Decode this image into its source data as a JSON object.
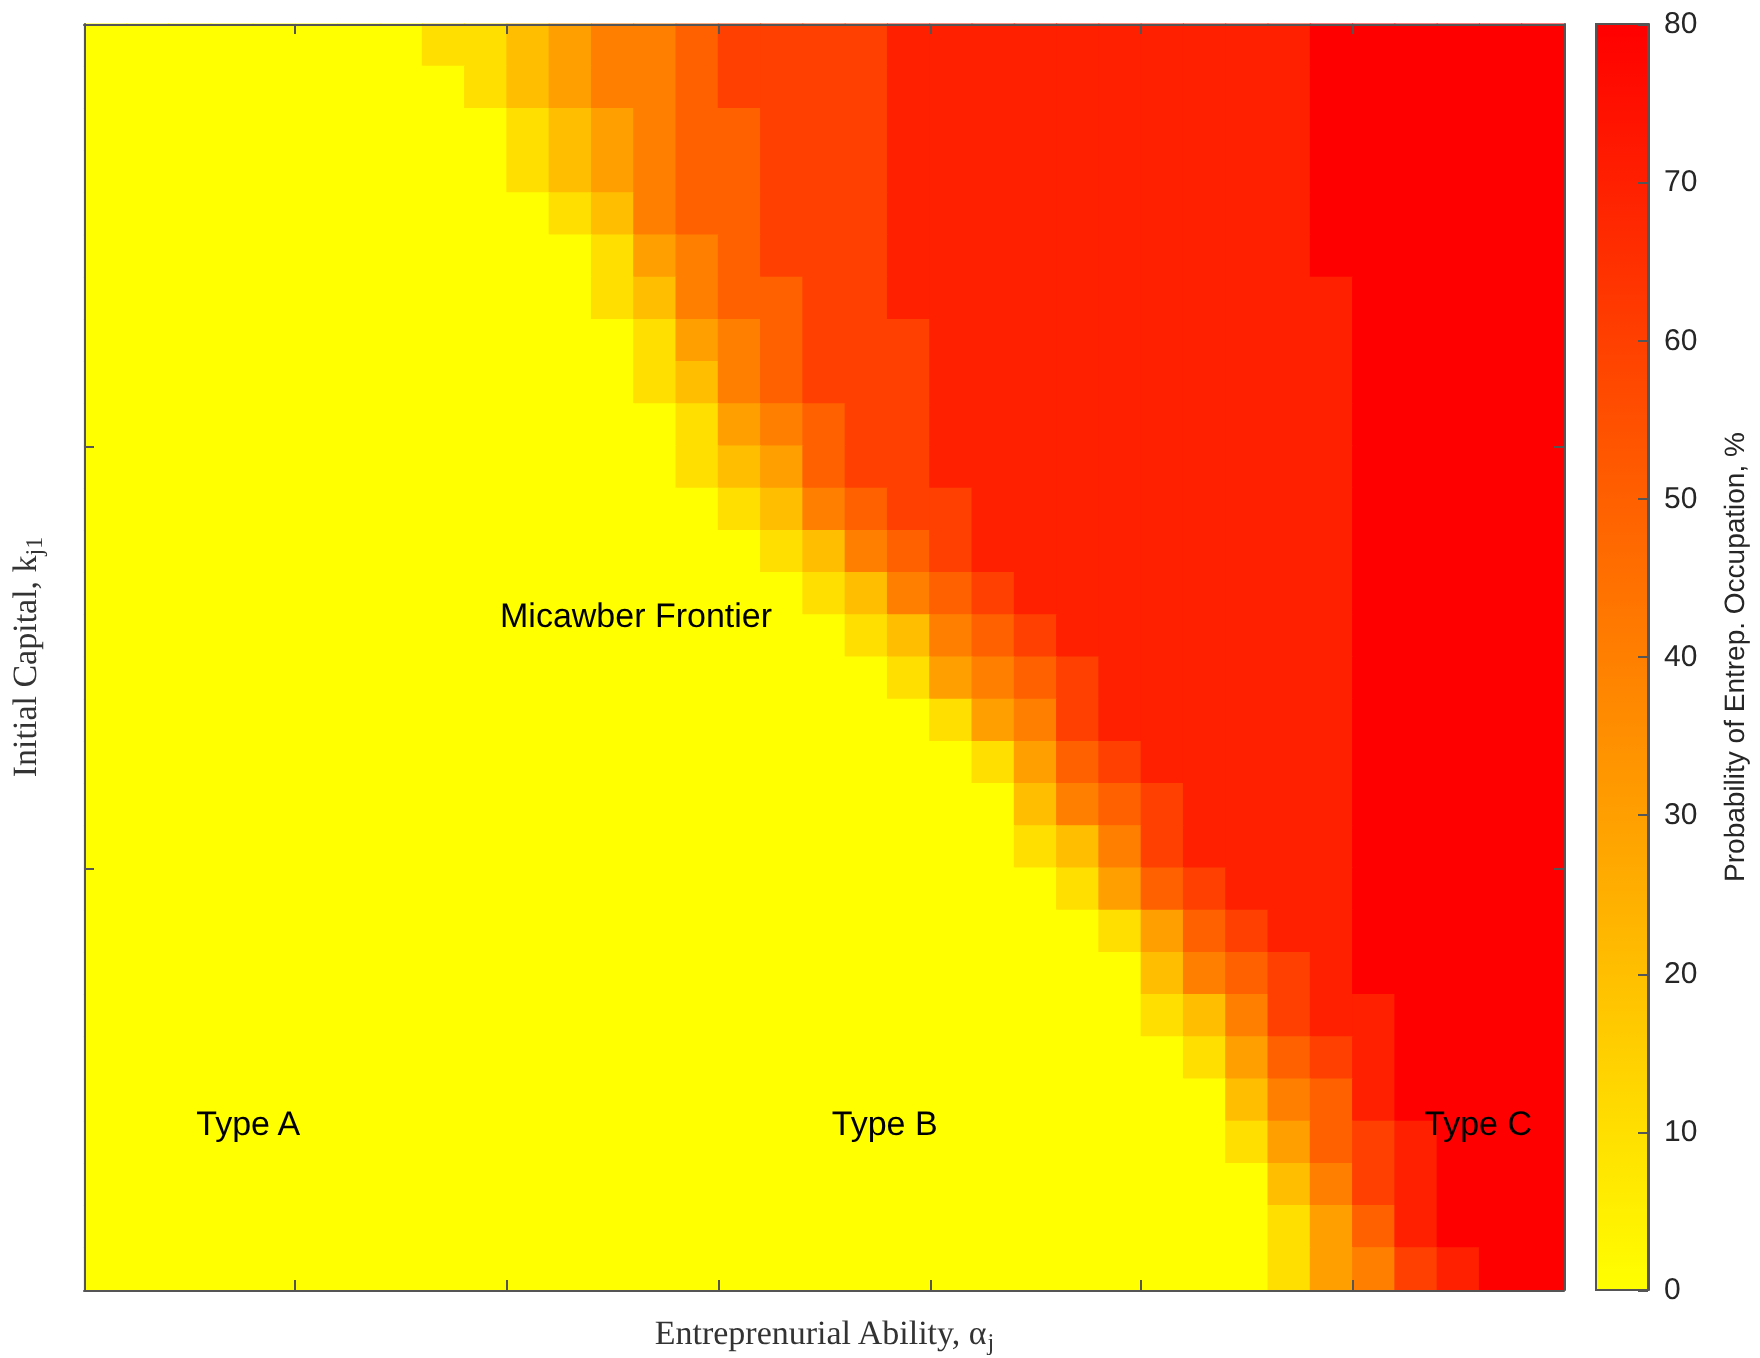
{
  "chart_data": {
    "type": "heatmap",
    "categories": [
      null,
      null,
      null,
      null,
      null,
      null,
      null,
      null,
      null,
      null,
      null,
      null,
      null,
      null,
      null,
      null,
      null,
      null,
      null,
      null,
      null,
      null,
      null,
      null,
      null,
      null,
      null,
      null,
      null,
      null,
      null,
      null,
      null,
      null,
      null
    ],
    "y_categories": [
      null,
      null,
      null,
      null,
      null,
      null,
      null,
      null,
      null,
      null,
      null,
      null,
      null,
      null,
      null,
      null,
      null,
      null,
      null,
      null,
      null,
      null,
      null,
      null,
      null,
      null,
      null,
      null,
      null,
      null
    ],
    "cells": [
      [
        0,
        0,
        0,
        0,
        0,
        0,
        0,
        0,
        10,
        10,
        20,
        30,
        40,
        40,
        50,
        60,
        60,
        60,
        60,
        70,
        70,
        70,
        70,
        70,
        70,
        70,
        70,
        70,
        70,
        80,
        80,
        80,
        80,
        80,
        80
      ],
      [
        0,
        0,
        0,
        0,
        0,
        0,
        0,
        0,
        0,
        10,
        20,
        30,
        40,
        40,
        50,
        60,
        60,
        60,
        60,
        70,
        70,
        70,
        70,
        70,
        70,
        70,
        70,
        70,
        70,
        80,
        80,
        80,
        80,
        80,
        80
      ],
      [
        0,
        0,
        0,
        0,
        0,
        0,
        0,
        0,
        0,
        0,
        10,
        20,
        30,
        40,
        50,
        50,
        60,
        60,
        60,
        70,
        70,
        70,
        70,
        70,
        70,
        70,
        70,
        70,
        70,
        80,
        80,
        80,
        80,
        80,
        80
      ],
      [
        0,
        0,
        0,
        0,
        0,
        0,
        0,
        0,
        0,
        0,
        10,
        20,
        30,
        40,
        50,
        50,
        60,
        60,
        60,
        70,
        70,
        70,
        70,
        70,
        70,
        70,
        70,
        70,
        70,
        80,
        80,
        80,
        80,
        80,
        80
      ],
      [
        0,
        0,
        0,
        0,
        0,
        0,
        0,
        0,
        0,
        0,
        0,
        10,
        20,
        40,
        50,
        50,
        60,
        60,
        60,
        70,
        70,
        70,
        70,
        70,
        70,
        70,
        70,
        70,
        70,
        80,
        80,
        80,
        80,
        80,
        80
      ],
      [
        0,
        0,
        0,
        0,
        0,
        0,
        0,
        0,
        0,
        0,
        0,
        0,
        10,
        30,
        40,
        50,
        60,
        60,
        60,
        70,
        70,
        70,
        70,
        70,
        70,
        70,
        70,
        70,
        70,
        80,
        80,
        80,
        80,
        80,
        80
      ],
      [
        0,
        0,
        0,
        0,
        0,
        0,
        0,
        0,
        0,
        0,
        0,
        0,
        10,
        20,
        40,
        50,
        50,
        60,
        60,
        70,
        70,
        70,
        70,
        70,
        70,
        70,
        70,
        70,
        70,
        70,
        80,
        80,
        80,
        80,
        80
      ],
      [
        0,
        0,
        0,
        0,
        0,
        0,
        0,
        0,
        0,
        0,
        0,
        0,
        0,
        10,
        30,
        40,
        50,
        60,
        60,
        60,
        70,
        70,
        70,
        70,
        70,
        70,
        70,
        70,
        70,
        70,
        80,
        80,
        80,
        80,
        80
      ],
      [
        0,
        0,
        0,
        0,
        0,
        0,
        0,
        0,
        0,
        0,
        0,
        0,
        0,
        10,
        20,
        40,
        50,
        60,
        60,
        60,
        70,
        70,
        70,
        70,
        70,
        70,
        70,
        70,
        70,
        70,
        80,
        80,
        80,
        80,
        80
      ],
      [
        0,
        0,
        0,
        0,
        0,
        0,
        0,
        0,
        0,
        0,
        0,
        0,
        0,
        0,
        10,
        30,
        40,
        50,
        60,
        60,
        70,
        70,
        70,
        70,
        70,
        70,
        70,
        70,
        70,
        70,
        80,
        80,
        80,
        80,
        80
      ],
      [
        0,
        0,
        0,
        0,
        0,
        0,
        0,
        0,
        0,
        0,
        0,
        0,
        0,
        0,
        10,
        20,
        30,
        50,
        60,
        60,
        70,
        70,
        70,
        70,
        70,
        70,
        70,
        70,
        70,
        70,
        80,
        80,
        80,
        80,
        80
      ],
      [
        0,
        0,
        0,
        0,
        0,
        0,
        0,
        0,
        0,
        0,
        0,
        0,
        0,
        0,
        0,
        10,
        20,
        40,
        50,
        60,
        60,
        70,
        70,
        70,
        70,
        70,
        70,
        70,
        70,
        70,
        80,
        80,
        80,
        80,
        80
      ],
      [
        0,
        0,
        0,
        0,
        0,
        0,
        0,
        0,
        0,
        0,
        0,
        0,
        0,
        0,
        0,
        0,
        10,
        20,
        40,
        50,
        60,
        70,
        70,
        70,
        70,
        70,
        70,
        70,
        70,
        70,
        80,
        80,
        80,
        80,
        80
      ],
      [
        0,
        0,
        0,
        0,
        0,
        0,
        0,
        0,
        0,
        0,
        0,
        0,
        0,
        0,
        0,
        0,
        0,
        10,
        20,
        40,
        50,
        60,
        70,
        70,
        70,
        70,
        70,
        70,
        70,
        70,
        80,
        80,
        80,
        80,
        80
      ],
      [
        0,
        0,
        0,
        0,
        0,
        0,
        0,
        0,
        0,
        0,
        0,
        0,
        0,
        0,
        0,
        0,
        0,
        0,
        10,
        20,
        40,
        50,
        60,
        70,
        70,
        70,
        70,
        70,
        70,
        70,
        80,
        80,
        80,
        80,
        80
      ],
      [
        0,
        0,
        0,
        0,
        0,
        0,
        0,
        0,
        0,
        0,
        0,
        0,
        0,
        0,
        0,
        0,
        0,
        0,
        0,
        10,
        30,
        40,
        50,
        60,
        70,
        70,
        70,
        70,
        70,
        70,
        80,
        80,
        80,
        80,
        80
      ],
      [
        0,
        0,
        0,
        0,
        0,
        0,
        0,
        0,
        0,
        0,
        0,
        0,
        0,
        0,
        0,
        0,
        0,
        0,
        0,
        0,
        10,
        30,
        40,
        60,
        70,
        70,
        70,
        70,
        70,
        70,
        80,
        80,
        80,
        80,
        80
      ],
      [
        0,
        0,
        0,
        0,
        0,
        0,
        0,
        0,
        0,
        0,
        0,
        0,
        0,
        0,
        0,
        0,
        0,
        0,
        0,
        0,
        0,
        10,
        30,
        50,
        60,
        70,
        70,
        70,
        70,
        70,
        80,
        80,
        80,
        80,
        80
      ],
      [
        0,
        0,
        0,
        0,
        0,
        0,
        0,
        0,
        0,
        0,
        0,
        0,
        0,
        0,
        0,
        0,
        0,
        0,
        0,
        0,
        0,
        0,
        20,
        40,
        50,
        60,
        70,
        70,
        70,
        70,
        80,
        80,
        80,
        80,
        80
      ],
      [
        0,
        0,
        0,
        0,
        0,
        0,
        0,
        0,
        0,
        0,
        0,
        0,
        0,
        0,
        0,
        0,
        0,
        0,
        0,
        0,
        0,
        0,
        10,
        20,
        40,
        60,
        70,
        70,
        70,
        70,
        80,
        80,
        80,
        80,
        80
      ],
      [
        0,
        0,
        0,
        0,
        0,
        0,
        0,
        0,
        0,
        0,
        0,
        0,
        0,
        0,
        0,
        0,
        0,
        0,
        0,
        0,
        0,
        0,
        0,
        10,
        30,
        50,
        60,
        70,
        70,
        70,
        80,
        80,
        80,
        80,
        80
      ],
      [
        0,
        0,
        0,
        0,
        0,
        0,
        0,
        0,
        0,
        0,
        0,
        0,
        0,
        0,
        0,
        0,
        0,
        0,
        0,
        0,
        0,
        0,
        0,
        0,
        10,
        30,
        50,
        60,
        70,
        70,
        80,
        80,
        80,
        80,
        80
      ],
      [
        0,
        0,
        0,
        0,
        0,
        0,
        0,
        0,
        0,
        0,
        0,
        0,
        0,
        0,
        0,
        0,
        0,
        0,
        0,
        0,
        0,
        0,
        0,
        0,
        0,
        20,
        40,
        50,
        60,
        70,
        80,
        80,
        80,
        80,
        80
      ],
      [
        0,
        0,
        0,
        0,
        0,
        0,
        0,
        0,
        0,
        0,
        0,
        0,
        0,
        0,
        0,
        0,
        0,
        0,
        0,
        0,
        0,
        0,
        0,
        0,
        0,
        10,
        20,
        40,
        60,
        70,
        70,
        80,
        80,
        80,
        80
      ],
      [
        0,
        0,
        0,
        0,
        0,
        0,
        0,
        0,
        0,
        0,
        0,
        0,
        0,
        0,
        0,
        0,
        0,
        0,
        0,
        0,
        0,
        0,
        0,
        0,
        0,
        0,
        10,
        30,
        50,
        60,
        70,
        80,
        80,
        80,
        80
      ],
      [
        0,
        0,
        0,
        0,
        0,
        0,
        0,
        0,
        0,
        0,
        0,
        0,
        0,
        0,
        0,
        0,
        0,
        0,
        0,
        0,
        0,
        0,
        0,
        0,
        0,
        0,
        0,
        20,
        40,
        50,
        70,
        80,
        80,
        80,
        80
      ],
      [
        0,
        0,
        0,
        0,
        0,
        0,
        0,
        0,
        0,
        0,
        0,
        0,
        0,
        0,
        0,
        0,
        0,
        0,
        0,
        0,
        0,
        0,
        0,
        0,
        0,
        0,
        0,
        10,
        30,
        50,
        60,
        70,
        80,
        80,
        80
      ],
      [
        0,
        0,
        0,
        0,
        0,
        0,
        0,
        0,
        0,
        0,
        0,
        0,
        0,
        0,
        0,
        0,
        0,
        0,
        0,
        0,
        0,
        0,
        0,
        0,
        0,
        0,
        0,
        0,
        20,
        40,
        60,
        70,
        80,
        80,
        80
      ],
      [
        0,
        0,
        0,
        0,
        0,
        0,
        0,
        0,
        0,
        0,
        0,
        0,
        0,
        0,
        0,
        0,
        0,
        0,
        0,
        0,
        0,
        0,
        0,
        0,
        0,
        0,
        0,
        0,
        10,
        30,
        50,
        70,
        80,
        80,
        80
      ],
      [
        0,
        0,
        0,
        0,
        0,
        0,
        0,
        0,
        0,
        0,
        0,
        0,
        0,
        0,
        0,
        0,
        0,
        0,
        0,
        0,
        0,
        0,
        0,
        0,
        0,
        0,
        0,
        0,
        10,
        30,
        40,
        60,
        70,
        80,
        80
      ]
    ],
    "clim": [
      0,
      80
    ],
    "cticks": [
      0,
      10,
      20,
      30,
      40,
      50,
      60,
      70,
      80
    ],
    "clabel": "Probability of Entrep. Occupation, %",
    "xlabel": "Entreprenurial Ability, α$_{j}$",
    "ylabel": "Initial Capital, k$_{j1}$",
    "annotations": [
      "Micawber Frontier",
      "Type A",
      "Type B",
      "Type C"
    ]
  }
}
